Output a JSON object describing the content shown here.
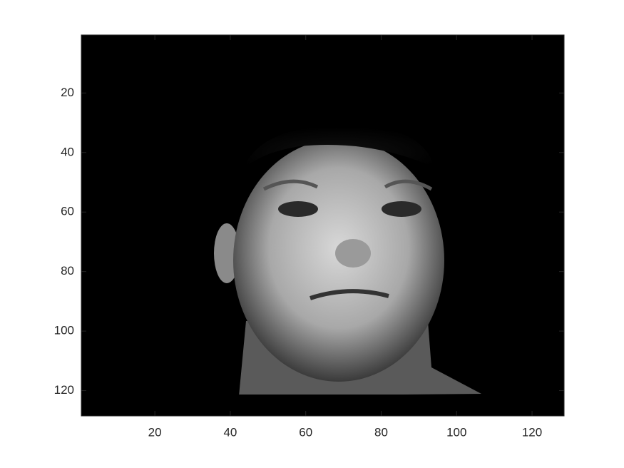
{
  "chart_data": {
    "type": "image",
    "xlim": [
      0.5,
      128.5
    ],
    "ylim": [
      0.5,
      128.5
    ],
    "ydir": "reverse",
    "xticks": [
      20,
      40,
      60,
      80,
      100,
      120
    ],
    "yticks": [
      20,
      40,
      60,
      80,
      100,
      120
    ]
  }
}
